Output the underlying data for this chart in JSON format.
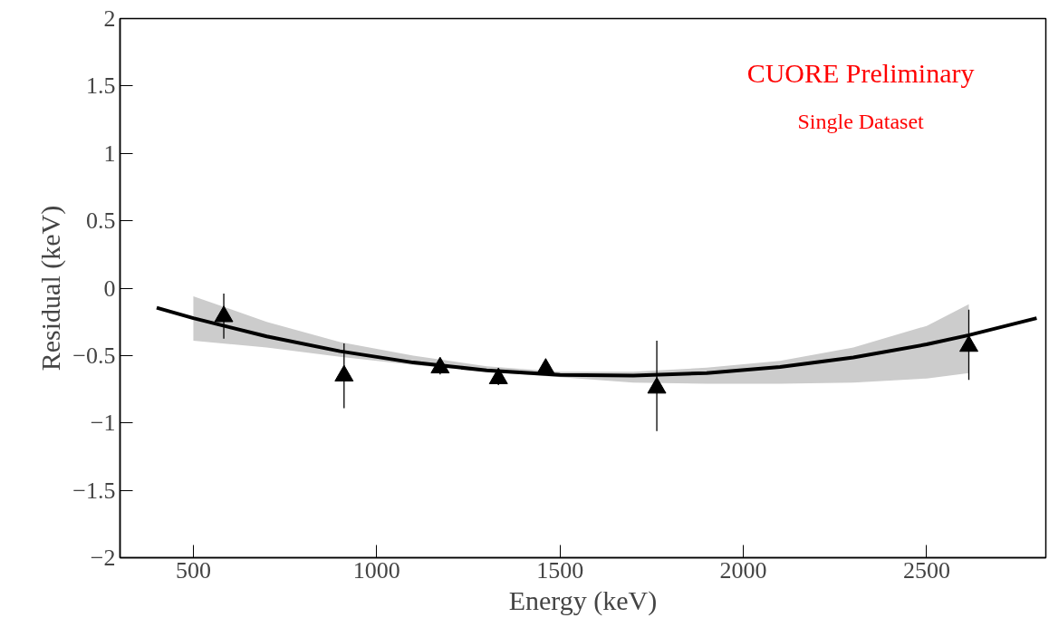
{
  "chart_data": {
    "type": "scatter",
    "xlabel": "Energy (keV)",
    "ylabel": "Residual (keV)",
    "annotations": [
      "CUORE Preliminary",
      "Single Dataset"
    ],
    "xlim": [
      300,
      2825
    ],
    "ylim": [
      -2,
      2
    ],
    "xticks": [
      500,
      1000,
      1500,
      2000,
      2500
    ],
    "yticks": [
      {
        "value": -2,
        "label": "−2"
      },
      {
        "value": -1.5,
        "label": "−1.5"
      },
      {
        "value": -1,
        "label": "−1"
      },
      {
        "value": -0.5,
        "label": "−0.5"
      },
      0,
      0.5,
      1,
      1.5,
      2
    ],
    "grid": false,
    "series": [
      {
        "type": "line",
        "color": "#000000",
        "marker": "none",
        "line_style": "solid",
        "x": [
          400,
          500,
          700,
          900,
          1100,
          1300,
          1500,
          1700,
          1900,
          2100,
          2300,
          2500,
          2615,
          2800
        ],
        "values": [
          -0.145,
          -0.223,
          -0.358,
          -0.468,
          -0.552,
          -0.61,
          -0.643,
          -0.649,
          -0.63,
          -0.585,
          -0.514,
          -0.417,
          -0.349,
          -0.223
        ],
        "lower": [
          null,
          -0.39,
          -0.44,
          -0.51,
          -0.57,
          -0.62,
          -0.66,
          -0.7,
          -0.71,
          -0.71,
          -0.7,
          -0.67,
          -0.63,
          null
        ],
        "upper": [
          null,
          -0.06,
          -0.25,
          -0.4,
          -0.5,
          -0.58,
          -0.62,
          -0.62,
          -0.59,
          -0.54,
          -0.44,
          -0.28,
          -0.12,
          null
        ]
      },
      {
        "color": "#000000",
        "marker": "triangle",
        "x": [
          583,
          911,
          1173,
          1332,
          1461,
          1764,
          2615
        ],
        "values": [
          -0.21,
          -0.65,
          -0.59,
          -0.67,
          -0.6,
          -0.74,
          -0.43
        ],
        "errors": [
          [
            -0.375,
            -0.04
          ],
          [
            -0.89,
            -0.41
          ],
          [
            -0.64,
            -0.52
          ],
          [
            -0.72,
            -0.6
          ],
          null,
          [
            -1.06,
            -0.39
          ],
          [
            -0.68,
            -0.16
          ]
        ]
      }
    ]
  }
}
